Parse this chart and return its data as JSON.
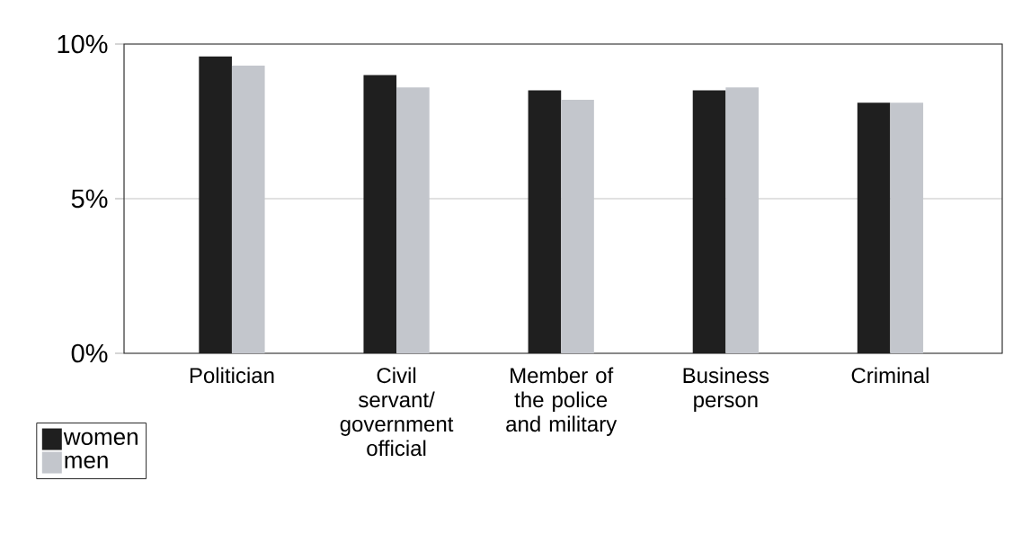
{
  "chart_data": {
    "type": "bar",
    "categories": [
      "Politician",
      "Civil servant/ government official",
      "Member of the police and military",
      "Business person",
      "Criminal"
    ],
    "series": [
      {
        "name": "women",
        "color": "#1f1f1f",
        "values": [
          9.6,
          9.0,
          8.5,
          8.5,
          8.1
        ]
      },
      {
        "name": "men",
        "color": "#c3c6cc",
        "values": [
          9.3,
          8.6,
          8.2,
          8.6,
          8.1
        ]
      }
    ],
    "ylim": [
      0,
      10
    ],
    "yticks": [
      {
        "value": 0,
        "label": "0%"
      },
      {
        "value": 5,
        "label": "5%"
      },
      {
        "value": 10,
        "label": "10%"
      }
    ],
    "grid": "y",
    "legend": "bottom left"
  }
}
